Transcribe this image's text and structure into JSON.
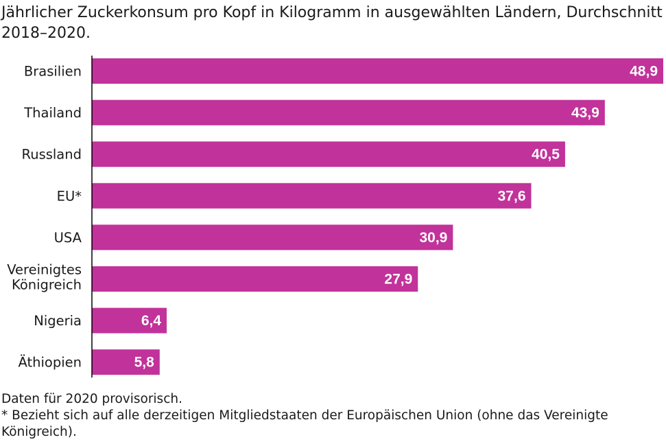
{
  "chart_data": {
    "type": "bar",
    "orientation": "horizontal",
    "title": "Jährlicher Zuckerkonsum pro Kopf in Kilogramm in ausgewählten Ländern, Durchschnitt 2018–2020.",
    "categories": [
      "Brasilien",
      "Thailand",
      "Russland",
      "EU*",
      "USA",
      "Vereinigtes Königreich",
      "Nigeria",
      "Äthiopien"
    ],
    "values": [
      48.9,
      43.9,
      40.5,
      37.6,
      30.9,
      27.9,
      6.4,
      5.8
    ],
    "value_labels": [
      "48,9",
      "43,9",
      "40,5",
      "37,6",
      "30,9",
      "27,9",
      "6,4",
      "5,8"
    ],
    "xlim": [
      0,
      48.9
    ],
    "grid": false,
    "bar_color": "#c1329a",
    "notes": [
      "Daten für 2020 provisorisch.",
      "* Bezieht sich auf alle derzeitigen Mitgliedstaaten der Europäischen Union (ohne das Vereinigte Königreich)."
    ]
  }
}
